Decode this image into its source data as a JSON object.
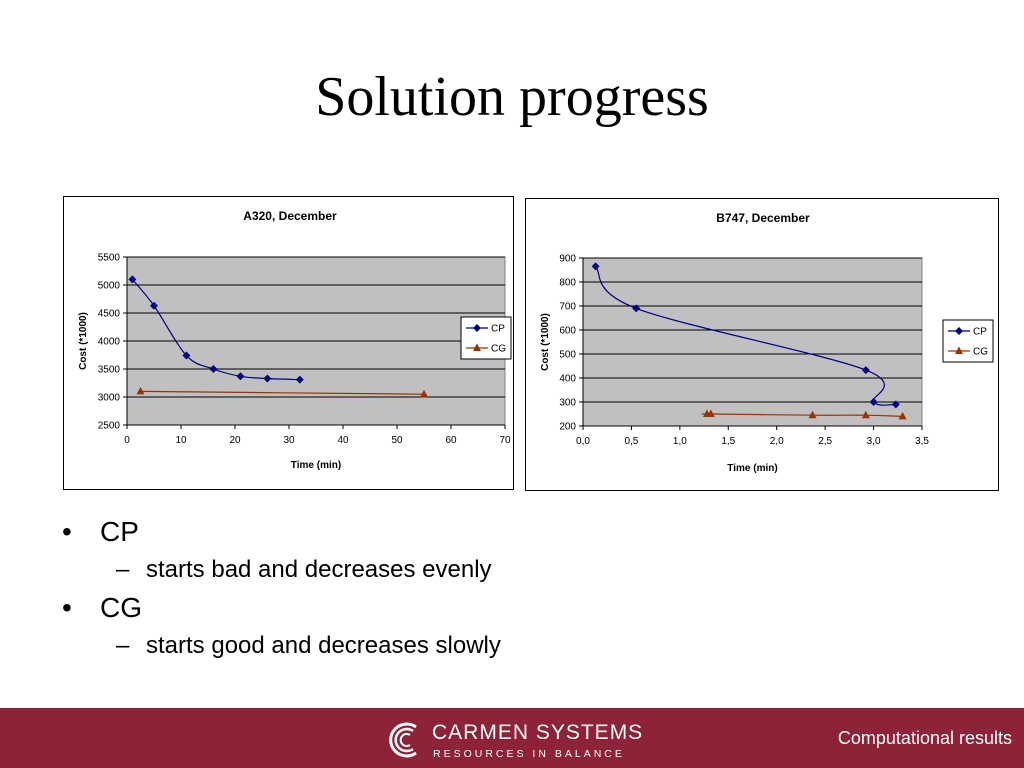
{
  "slide": {
    "title": "Solution progress"
  },
  "bullets": [
    {
      "text": "CP",
      "sub": "starts bad and decreases evenly"
    },
    {
      "text": "CG",
      "sub": "starts good and decreases slowly"
    }
  ],
  "footer": {
    "brand_name": "CARMEN SYSTEMS",
    "brand_tagline": "RESOURCES IN BALANCE",
    "section": "Computational results",
    "background_color": "#8e2236"
  },
  "chart_data": [
    {
      "type": "line",
      "title": "A320, December",
      "xlabel": "Time (min)",
      "ylabel": "Cost (*1000)",
      "xlim": [
        0,
        70
      ],
      "ylim": [
        2500,
        5500
      ],
      "xticks": [
        0,
        10,
        20,
        30,
        40,
        50,
        60,
        70
      ],
      "xtick_labels": [
        "0",
        "10",
        "20",
        "30",
        "40",
        "50",
        "60",
        "70"
      ],
      "yticks": [
        2500,
        3000,
        3500,
        4000,
        4500,
        5000,
        5500
      ],
      "ytick_labels": [
        "2500",
        "3000",
        "3500",
        "4000",
        "4500",
        "5000",
        "5500"
      ],
      "plot_background": "#c0c0c0",
      "grid": true,
      "legend_position": "right",
      "series": [
        {
          "name": "CP",
          "color": "#000080",
          "marker": "diamond",
          "x": [
            1,
            5,
            11,
            16,
            21,
            26,
            32
          ],
          "y": [
            5100,
            4630,
            3740,
            3500,
            3370,
            3330,
            3310
          ]
        },
        {
          "name": "CG",
          "color": "#993300",
          "marker": "triangle",
          "x": [
            2.5,
            55
          ],
          "y": [
            3100,
            3050
          ]
        }
      ]
    },
    {
      "type": "line",
      "title": "B747, December",
      "xlabel": "Time (min)",
      "ylabel": "Cost (*1000)",
      "xlim": [
        0,
        3.5
      ],
      "ylim": [
        200,
        900
      ],
      "xticks": [
        0,
        0.5,
        1,
        1.5,
        2,
        2.5,
        3,
        3.5
      ],
      "xtick_labels": [
        "0,0",
        "0,5",
        "1,0",
        "1,5",
        "2,0",
        "2,5",
        "3,0",
        "3,5"
      ],
      "yticks": [
        200,
        300,
        400,
        500,
        600,
        700,
        800,
        900
      ],
      "ytick_labels": [
        "200",
        "300",
        "400",
        "500",
        "600",
        "700",
        "800",
        "900"
      ],
      "plot_background": "#c0c0c0",
      "grid": true,
      "legend_position": "right",
      "series": [
        {
          "name": "CP",
          "color": "#000080",
          "marker": "diamond",
          "x": [
            0.13,
            0.55,
            2.92,
            3.0,
            3.23
          ],
          "y": [
            865,
            690,
            433,
            300,
            290
          ]
        },
        {
          "name": "CG",
          "color": "#993300",
          "marker": "triangle",
          "x": [
            1.28,
            1.32,
            2.37,
            2.92,
            3.3
          ],
          "y": [
            250,
            250,
            245,
            245,
            240
          ]
        }
      ]
    }
  ]
}
